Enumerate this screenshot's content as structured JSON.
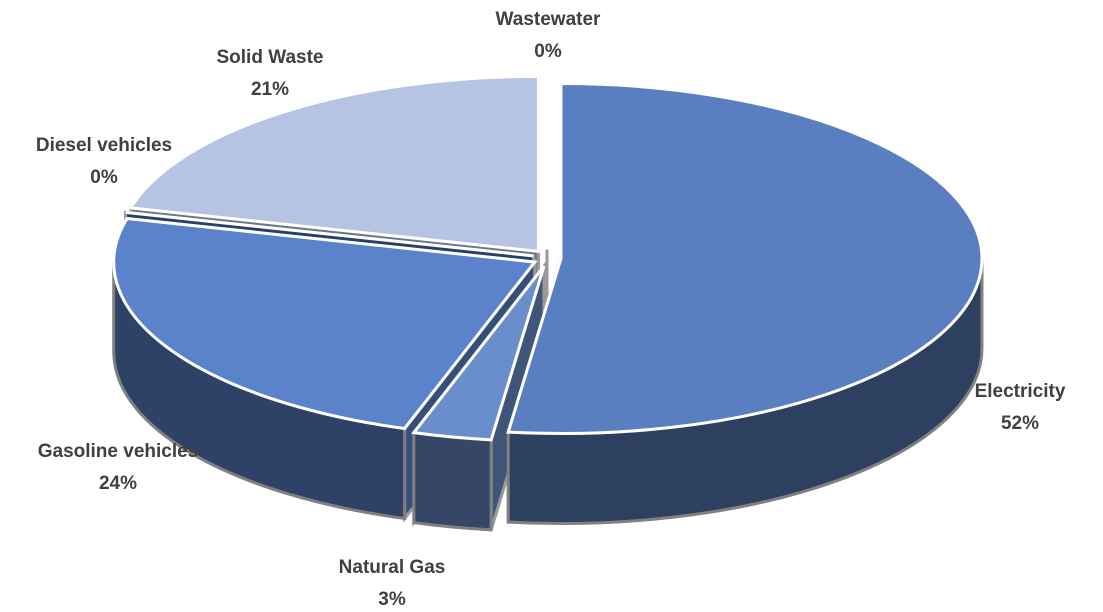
{
  "chart_data": {
    "type": "pie",
    "categories": [
      "Electricity",
      "Natural Gas",
      "Gasoline vehicles",
      "Diesel vehicles",
      "Solid Waste",
      "Wastewater"
    ],
    "values": [
      52,
      3,
      24,
      0,
      21,
      0
    ],
    "value_labels": [
      "52%",
      "3%",
      "24%",
      "0%",
      "21%",
      "0%"
    ],
    "colors": [
      "#5a7fc0",
      "#6a8dcc",
      "#5a83cc",
      "#3f6bb8",
      "#b6c4e4",
      "#9fb3de"
    ]
  }
}
